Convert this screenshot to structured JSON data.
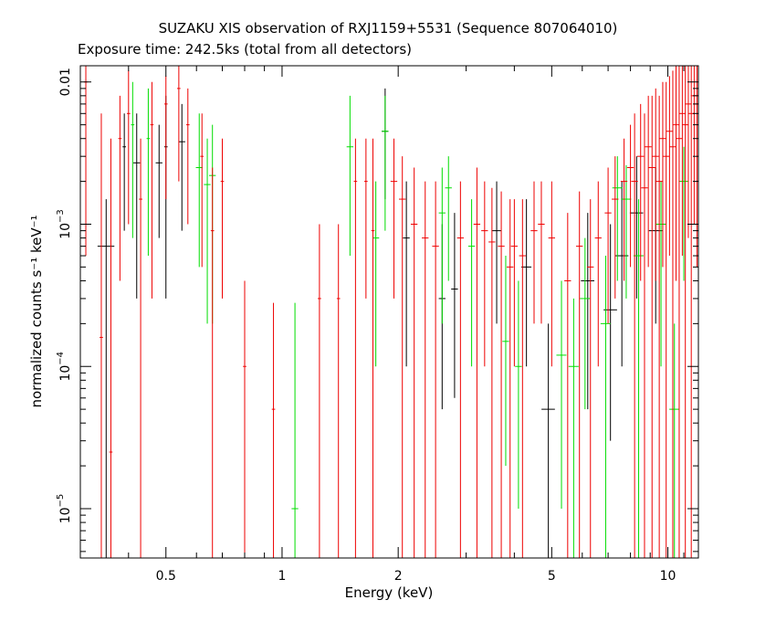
{
  "chart_data": {
    "type": "scatter",
    "title": "SUZAKU XIS observation of RXJ1159+5531 (Sequence 807064010)",
    "subtitle": "Exposure time: 242.5ks (total from all detectors)",
    "xlabel": "Energy (keV)",
    "ylabel": "normalized counts s⁻¹ keV⁻¹",
    "x_scale": "log",
    "y_scale": "log",
    "xlim": [
      0.3,
      12
    ],
    "ylim": [
      4.5e-06,
      0.013
    ],
    "x_ticks": [
      {
        "value": 0.5,
        "label": "0.5"
      },
      {
        "value": 1,
        "label": "1"
      },
      {
        "value": 2,
        "label": "2"
      },
      {
        "value": 5,
        "label": "5"
      },
      {
        "value": 10,
        "label": "10"
      }
    ],
    "y_ticks": [
      {
        "value": 1e-05,
        "base": "10",
        "exp": "−5"
      },
      {
        "value": 0.0001,
        "base": "10",
        "exp": "−4"
      },
      {
        "value": 0.001,
        "base": "10",
        "exp": "−3"
      },
      {
        "value": 0.01,
        "label": "0.01"
      }
    ],
    "series": [
      {
        "color": "#000000",
        "points": [
          [
            0.35,
            0.0007,
            0.05,
            1e-09,
            0.0015
          ],
          [
            0.39,
            0.0035,
            0.01,
            0.0009,
            0.006
          ],
          [
            0.42,
            0.0027,
            0.02,
            0.0003,
            0.006
          ],
          [
            0.48,
            0.0027,
            0.02,
            0.0008,
            0.005
          ],
          [
            0.5,
            0.0035,
            0.01,
            0.0003,
            0.008
          ],
          [
            0.55,
            0.0038,
            0.02,
            0.0009,
            0.007
          ],
          [
            1.85,
            0.0045,
            0.02,
            0.0015,
            0.009
          ],
          [
            2.1,
            0.0008,
            0.02,
            0.0001,
            0.002
          ],
          [
            2.6,
            0.0003,
            0.02,
            5e-05,
            0.001
          ],
          [
            2.8,
            0.00035,
            0.02,
            6e-05,
            0.0012
          ],
          [
            3.6,
            0.0009,
            0.03,
            0.0002,
            0.002
          ],
          [
            4.3,
            0.0005,
            0.03,
            0.0001,
            0.0015
          ],
          [
            4.9,
            5e-05,
            0.04,
            1e-09,
            0.0002
          ],
          [
            6.2,
            0.0004,
            0.04,
            5e-05,
            0.0012
          ],
          [
            7.1,
            0.00025,
            0.04,
            3e-05,
            0.001
          ],
          [
            7.6,
            0.0006,
            0.04,
            0.0001,
            0.002
          ],
          [
            8.3,
            0.0012,
            0.04,
            0.0003,
            0.003
          ],
          [
            9.3,
            0.0009,
            0.04,
            0.0002,
            0.0025
          ]
        ]
      },
      {
        "color": "#00dd00",
        "points": [
          [
            0.41,
            0.005,
            0.01,
            0.0008,
            0.01
          ],
          [
            0.45,
            0.004,
            0.01,
            0.0006,
            0.009
          ],
          [
            0.61,
            0.0025,
            0.02,
            0.0005,
            0.006
          ],
          [
            0.64,
            0.0019,
            0.02,
            0.0002,
            0.004
          ],
          [
            0.66,
            0.0022,
            0.02,
            0.0002,
            0.005
          ],
          [
            1.08,
            1e-05,
            0.02,
            1e-09,
            0.00028
          ],
          [
            1.5,
            0.0035,
            0.02,
            0.0006,
            0.008
          ],
          [
            1.75,
            0.0008,
            0.02,
            0.0001,
            0.002
          ],
          [
            1.85,
            0.0045,
            0.02,
            0.0009,
            0.008
          ],
          [
            2.6,
            0.0012,
            0.02,
            0.0002,
            0.0025
          ],
          [
            2.7,
            0.0018,
            0.02,
            0.0004,
            0.003
          ],
          [
            3.1,
            0.0007,
            0.02,
            0.0001,
            0.0015
          ],
          [
            3.8,
            0.00015,
            0.02,
            2e-05,
            0.0006
          ],
          [
            4.1,
            0.0001,
            0.02,
            1e-05,
            0.0004
          ],
          [
            5.3,
            0.00012,
            0.03,
            1e-05,
            0.0004
          ],
          [
            5.7,
            0.0001,
            0.03,
            1e-09,
            0.0003
          ],
          [
            6.1,
            0.0003,
            0.03,
            5e-05,
            0.0008
          ],
          [
            6.9,
            0.0002,
            0.03,
            1e-09,
            0.0006
          ],
          [
            7.4,
            0.0018,
            0.03,
            0.0004,
            0.003
          ],
          [
            7.8,
            0.0015,
            0.03,
            0.0003,
            0.0026
          ],
          [
            8.4,
            0.0006,
            0.03,
            1e-09,
            0.0015
          ],
          [
            9.6,
            0.001,
            0.03,
            0.0001,
            0.002
          ],
          [
            10.4,
            5e-05,
            0.03,
            1e-09,
            0.0002
          ],
          [
            11.0,
            0.002,
            0.03,
            0.0004,
            0.0035
          ]
        ]
      },
      {
        "color": "#ee0000",
        "points": [
          [
            0.31,
            0.01,
            0.01,
            0.0006,
            0.013
          ],
          [
            0.34,
            0.00016,
            0.01,
            1e-09,
            0.006
          ],
          [
            0.36,
            2.5e-05,
            0.01,
            1e-09,
            0.004
          ],
          [
            0.38,
            0.004,
            0.01,
            0.0004,
            0.008
          ],
          [
            0.4,
            0.006,
            0.01,
            0.001,
            0.012
          ],
          [
            0.43,
            0.0015,
            0.01,
            1e-09,
            0.004
          ],
          [
            0.46,
            0.005,
            0.01,
            0.0003,
            0.01
          ],
          [
            0.5,
            0.007,
            0.01,
            0.0015,
            0.011
          ],
          [
            0.54,
            0.009,
            0.01,
            0.002,
            0.013
          ],
          [
            0.57,
            0.005,
            0.01,
            0.001,
            0.009
          ],
          [
            0.62,
            0.003,
            0.01,
            0.0005,
            0.006
          ],
          [
            0.66,
            0.0009,
            0.01,
            1e-09,
            0.0025
          ],
          [
            0.7,
            0.002,
            0.01,
            0.0003,
            0.004
          ],
          [
            0.8,
            0.0001,
            0.01,
            1e-09,
            0.0004
          ],
          [
            0.95,
            5e-05,
            0.01,
            1e-09,
            0.00028
          ],
          [
            1.25,
            0.0003,
            0.01,
            1e-09,
            0.001
          ],
          [
            1.4,
            0.0003,
            0.01,
            1e-09,
            0.001
          ],
          [
            1.55,
            0.002,
            0.01,
            1e-09,
            0.004
          ],
          [
            1.65,
            0.002,
            0.01,
            0.0003,
            0.004
          ],
          [
            1.72,
            0.0009,
            0.01,
            1e-09,
            0.004
          ],
          [
            1.95,
            0.002,
            0.02,
            0.0003,
            0.004
          ],
          [
            2.05,
            0.0015,
            0.02,
            1e-09,
            0.003
          ],
          [
            2.2,
            0.001,
            0.02,
            1e-09,
            0.0025
          ],
          [
            2.35,
            0.0008,
            0.02,
            1e-09,
            0.002
          ],
          [
            2.5,
            0.0007,
            0.02,
            1e-09,
            0.002
          ],
          [
            2.9,
            0.0008,
            0.02,
            1e-09,
            0.002
          ],
          [
            3.2,
            0.001,
            0.02,
            1e-09,
            0.0025
          ],
          [
            3.35,
            0.0009,
            0.02,
            0.0001,
            0.002
          ],
          [
            3.5,
            0.00075,
            0.02,
            1e-09,
            0.0018
          ],
          [
            3.7,
            0.0007,
            0.02,
            1e-09,
            0.0017
          ],
          [
            3.9,
            0.0005,
            0.02,
            1e-09,
            0.0015
          ],
          [
            4.0,
            0.0007,
            0.02,
            0.0001,
            0.0015
          ],
          [
            4.2,
            0.0006,
            0.02,
            1e-09,
            0.0015
          ],
          [
            4.5,
            0.0009,
            0.02,
            0.0002,
            0.002
          ],
          [
            4.7,
            0.001,
            0.02,
            0.0002,
            0.002
          ],
          [
            5.0,
            0.0008,
            0.02,
            0.0001,
            0.002
          ],
          [
            5.5,
            0.0004,
            0.02,
            1e-09,
            0.0012
          ],
          [
            5.9,
            0.0007,
            0.02,
            1e-09,
            0.0017
          ],
          [
            6.3,
            0.0005,
            0.02,
            1e-09,
            0.0015
          ],
          [
            6.6,
            0.0008,
            0.02,
            0.0001,
            0.002
          ],
          [
            7.0,
            0.0012,
            0.02,
            0.0002,
            0.0025
          ],
          [
            7.3,
            0.0015,
            0.02,
            0.0003,
            0.003
          ],
          [
            7.7,
            0.002,
            0.02,
            0.0004,
            0.004
          ],
          [
            8.0,
            0.0025,
            0.02,
            0.0005,
            0.005
          ],
          [
            8.2,
            0.002,
            0.02,
            1e-09,
            0.006
          ],
          [
            8.5,
            0.003,
            0.02,
            0.0004,
            0.007
          ],
          [
            8.7,
            0.0018,
            0.02,
            1e-09,
            0.006
          ],
          [
            8.9,
            0.0035,
            0.02,
            0.0005,
            0.008
          ],
          [
            9.1,
            0.0025,
            0.02,
            1e-09,
            0.008
          ],
          [
            9.3,
            0.003,
            0.02,
            0.0004,
            0.009
          ],
          [
            9.5,
            0.002,
            0.02,
            1e-09,
            0.008
          ],
          [
            9.7,
            0.004,
            0.02,
            0.0005,
            0.01
          ],
          [
            9.9,
            0.003,
            0.02,
            1e-09,
            0.01
          ],
          [
            10.1,
            0.0045,
            0.02,
            0.0006,
            0.011
          ],
          [
            10.3,
            0.0035,
            0.02,
            1e-09,
            0.012
          ],
          [
            10.5,
            0.005,
            0.02,
            0.0004,
            0.013
          ],
          [
            10.7,
            0.004,
            0.02,
            1e-09,
            0.013
          ],
          [
            10.9,
            0.006,
            0.02,
            0.0006,
            0.013
          ],
          [
            11.1,
            0.005,
            0.02,
            1e-09,
            0.013
          ],
          [
            11.3,
            0.007,
            0.02,
            0.0008,
            0.013
          ],
          [
            11.5,
            0.006,
            0.02,
            1e-09,
            0.013
          ],
          [
            11.7,
            0.008,
            0.02,
            0.001,
            0.013
          ],
          [
            11.9,
            0.007,
            0.02,
            0.0005,
            0.013
          ]
        ]
      }
    ]
  }
}
